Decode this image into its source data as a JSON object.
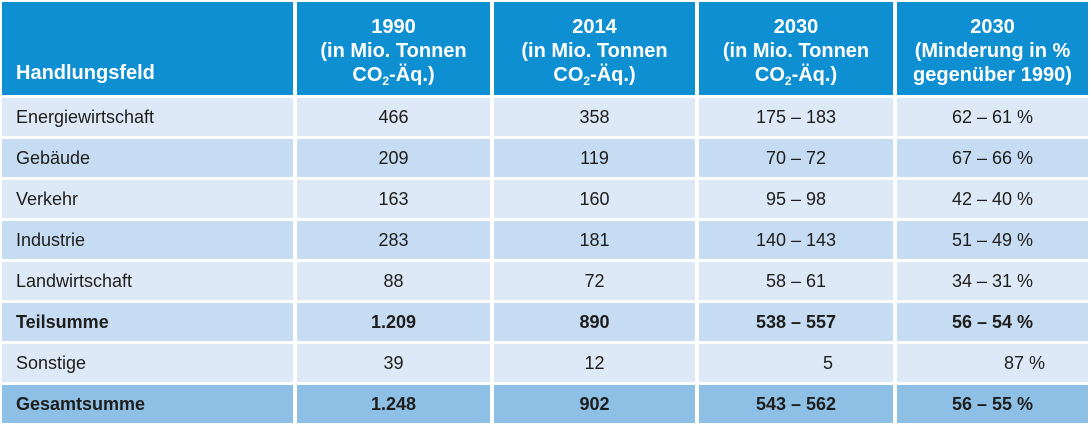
{
  "colors": {
    "header-bg": "#0d8fd2",
    "header-text": "#ffffff",
    "row-light": "#dde9f6",
    "row-alt": "#c6dcf2",
    "row-total": "#8ec0e6",
    "body-text": "#1d1d1b"
  },
  "table": {
    "header": {
      "col1": "Handlungsfeld",
      "col2": {
        "year": "1990",
        "line2": "(in Mio. Tonnen"
      },
      "col3": {
        "year": "2014",
        "line2": "(in Mio. Tonnen"
      },
      "col4": {
        "year": "2030",
        "line2": "(in Mio. Tonnen"
      },
      "col5": {
        "year": "2030",
        "line2": "(Minderung in %",
        "line3": "gegenüber 1990)"
      },
      "unit_parts": {
        "a": "CO",
        "sub": "2",
        "b": "-Äq.)"
      }
    },
    "rows": [
      {
        "label": "Energiewirtschaft",
        "type": "sector",
        "values": [
          "466",
          "358",
          "175 – 183",
          "62 – 61 %"
        ]
      },
      {
        "label": "Gebäude",
        "type": "sector",
        "values": [
          "209",
          "119",
          "70 – 72",
          "67 – 66 %"
        ]
      },
      {
        "label": "Verkehr",
        "type": "sector",
        "values": [
          "163",
          "160",
          "95 – 98",
          "42 – 40 %"
        ]
      },
      {
        "label": "Industrie",
        "type": "sector",
        "values": [
          "283",
          "181",
          "140 – 143",
          "51 – 49 %"
        ]
      },
      {
        "label": "Landwirtschaft",
        "type": "sector",
        "values": [
          "88",
          "72",
          "58 – 61",
          "34 – 31 %"
        ]
      },
      {
        "label": "Teilsumme",
        "type": "subtotal",
        "values": [
          "1.209",
          "890",
          "538 – 557",
          "56 – 54 %"
        ]
      },
      {
        "label": "Sonstige",
        "type": "sector",
        "values": [
          "39",
          "12",
          "5",
          "87 %"
        ]
      },
      {
        "label": "Gesamtsumme",
        "type": "total",
        "values": [
          "1.248",
          "902",
          "543 – 562",
          "56 – 55 %"
        ]
      }
    ]
  }
}
